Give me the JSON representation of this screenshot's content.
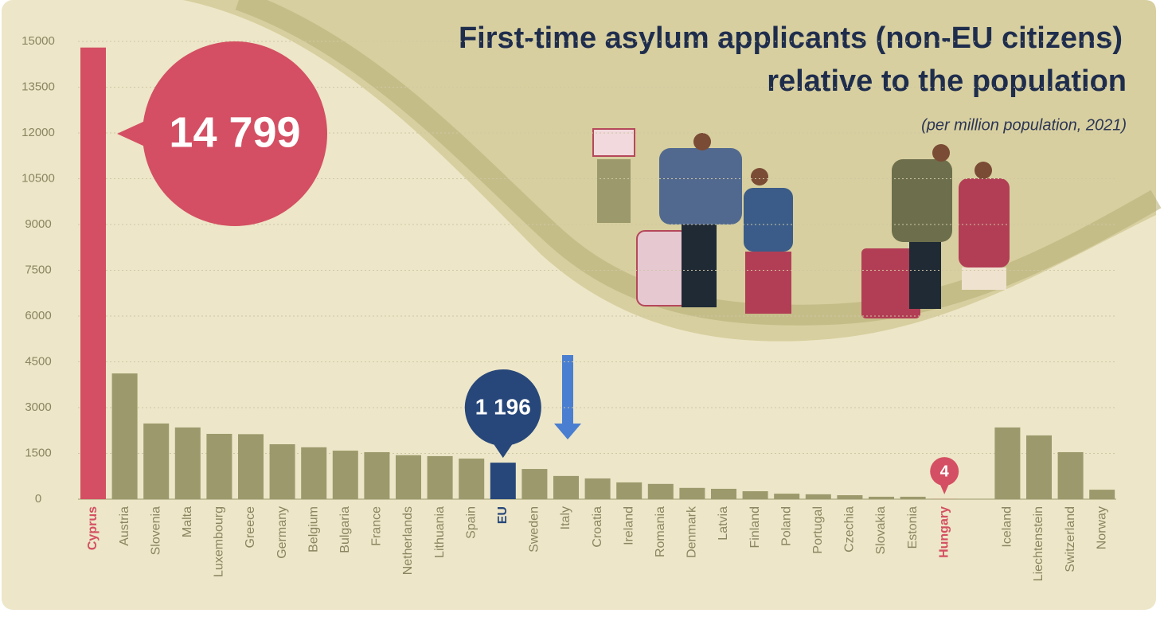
{
  "chart_data": {
    "type": "bar",
    "title": [
      "First-time asylum applicants (non-EU citizens)",
      "relative to the population"
    ],
    "subtitle": "(per million population, 2021)",
    "categories": [
      "Cyprus",
      "Austria",
      "Slovenia",
      "Malta",
      "Luxembourg",
      "Greece",
      "Germany",
      "Belgium",
      "Bulgaria",
      "France",
      "Netherlands",
      "Lithuania",
      "Spain",
      "EU",
      "Sweden",
      "Italy",
      "Croatia",
      "Ireland",
      "Romania",
      "Denmark",
      "Latvia",
      "Finland",
      "Poland",
      "Portugal",
      "Czechia",
      "Slovakia",
      "Estonia",
      "Hungary",
      "Iceland",
      "Liechtenstein",
      "Switzerland",
      "Norway"
    ],
    "values": [
      14799,
      4120,
      2480,
      2350,
      2140,
      2130,
      1800,
      1700,
      1590,
      1540,
      1440,
      1410,
      1330,
      1196,
      990,
      760,
      680,
      550,
      500,
      370,
      340,
      260,
      180,
      160,
      130,
      80,
      80,
      4,
      2350,
      2090,
      1540,
      310
    ],
    "value_labels": [
      "14 799",
      null,
      null,
      null,
      null,
      null,
      null,
      null,
      null,
      null,
      null,
      null,
      null,
      "1 196",
      null,
      null,
      null,
      null,
      null,
      null,
      null,
      null,
      null,
      null,
      null,
      null,
      null,
      "4",
      null,
      null,
      null,
      null
    ],
    "colors": [
      "#d44f63",
      "#9c9a6c",
      "#9c9a6c",
      "#9c9a6c",
      "#9c9a6c",
      "#9c9a6c",
      "#9c9a6c",
      "#9c9a6c",
      "#9c9a6c",
      "#9c9a6c",
      "#9c9a6c",
      "#9c9a6c",
      "#9c9a6c",
      "#27477a",
      "#9c9a6c",
      "#9c9a6c",
      "#9c9a6c",
      "#9c9a6c",
      "#9c9a6c",
      "#9c9a6c",
      "#9c9a6c",
      "#9c9a6c",
      "#9c9a6c",
      "#9c9a6c",
      "#9c9a6c",
      "#9c9a6c",
      "#9c9a6c",
      "#d44f63",
      "#9c9a6c",
      "#9c9a6c",
      "#9c9a6c",
      "#9c9a6c"
    ],
    "ylim": [
      0,
      15000
    ],
    "yticks": [
      0,
      1500,
      3000,
      4500,
      6000,
      7500,
      9000,
      10500,
      12000,
      13500,
      15000
    ],
    "grid": true
  }
}
